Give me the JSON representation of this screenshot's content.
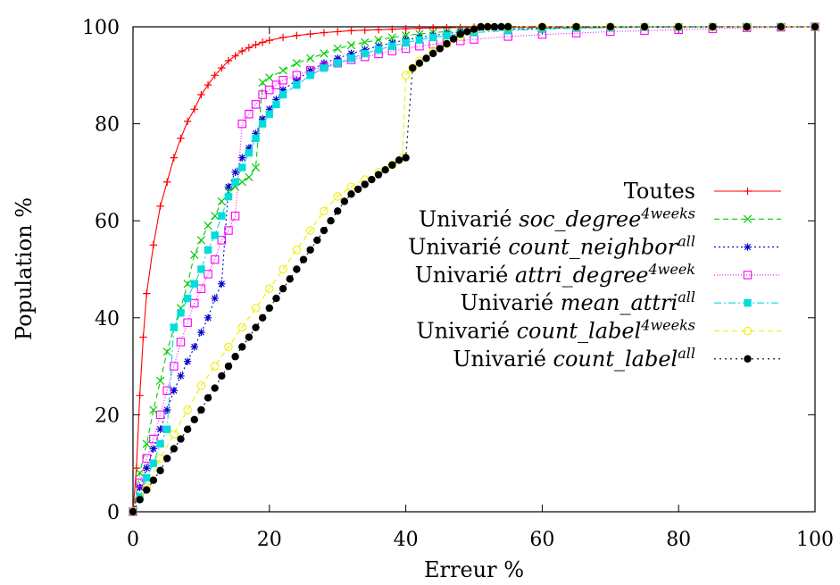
{
  "chart_data": {
    "type": "line",
    "title": "",
    "xlabel": "Erreur %",
    "ylabel": "Population %",
    "xlim": [
      0,
      100
    ],
    "ylim": [
      0,
      100
    ],
    "xticks": [
      "0",
      "20",
      "40",
      "60",
      "80",
      "100"
    ],
    "yticks": [
      "0",
      "20",
      "40",
      "60",
      "80",
      "100"
    ],
    "grid": false,
    "legend_position": "center-right",
    "series": [
      {
        "name": "Toutes",
        "legend": {
          "prefix": "Toutes",
          "var": "",
          "sup": ""
        },
        "color": "#ff0000",
        "marker": "plus",
        "dash": "",
        "x": [
          0,
          0.5,
          1,
          1.5,
          2,
          3,
          4,
          5,
          6,
          7,
          8,
          9,
          10,
          11,
          12,
          13,
          14,
          15,
          16,
          17,
          18,
          19,
          20,
          22,
          24,
          26,
          28,
          30,
          32,
          34,
          36,
          38,
          40,
          42,
          44,
          46,
          48,
          50,
          55,
          60,
          65,
          70,
          75,
          80,
          85,
          90,
          95,
          100
        ],
        "y": [
          0,
          9,
          24,
          36,
          45,
          55,
          63,
          68,
          73,
          77,
          80.5,
          83,
          86,
          88,
          90,
          91.5,
          93,
          94,
          95,
          95.7,
          96.3,
          96.8,
          97.2,
          97.8,
          98.2,
          98.5,
          98.8,
          99,
          99.2,
          99.3,
          99.4,
          99.5,
          99.6,
          99.7,
          99.75,
          99.8,
          99.85,
          99.9,
          99.92,
          99.95,
          99.96,
          99.97,
          99.98,
          99.99,
          100,
          100,
          100,
          100
        ]
      },
      {
        "name": "Univarié soc_degree4weeks",
        "legend": {
          "prefix": "Univarié ",
          "var": "soc_degree",
          "sup": "4weeks"
        },
        "color": "#00cc00",
        "marker": "x",
        "dash": "6,4",
        "x": [
          0,
          1,
          2,
          3,
          4,
          5,
          6,
          7,
          8,
          9,
          10,
          11,
          12,
          13,
          14,
          15,
          16,
          17,
          18,
          19,
          20,
          22,
          24,
          26,
          28,
          30,
          32,
          34,
          36,
          38,
          40,
          42,
          44,
          46,
          48,
          50,
          55,
          60,
          65,
          70,
          75,
          80,
          85,
          90,
          95,
          100
        ],
        "y": [
          0,
          8,
          14,
          21,
          27,
          33,
          38,
          42,
          47,
          53,
          56,
          59,
          61,
          64,
          66,
          67,
          68,
          69,
          71,
          88.5,
          89.5,
          91,
          92.5,
          93.5,
          94.5,
          95.5,
          96.2,
          96.8,
          97.3,
          97.8,
          98.2,
          98.5,
          98.8,
          99,
          99.2,
          99.4,
          99.6,
          99.7,
          99.8,
          99.85,
          99.9,
          99.95,
          100,
          100,
          100,
          100
        ]
      },
      {
        "name": "Univarié count_neighborall",
        "legend": {
          "prefix": "Univarié ",
          "var": "count_neighbor",
          "sup": "all"
        },
        "color": "#0000cc",
        "marker": "star",
        "dash": "2,3",
        "x": [
          0,
          1,
          2,
          3,
          4,
          5,
          6,
          7,
          8,
          9,
          10,
          11,
          12,
          13,
          14,
          15,
          16,
          17,
          18,
          19,
          20,
          21,
          22,
          24,
          26,
          28,
          30,
          32,
          34,
          36,
          38,
          40,
          42,
          44,
          46,
          48,
          50,
          55,
          60,
          65,
          70,
          75,
          80,
          85,
          90,
          95,
          100
        ],
        "y": [
          0,
          5,
          9,
          13,
          17,
          21,
          25,
          28,
          31,
          34,
          37,
          40,
          44,
          47,
          67,
          70,
          73,
          75,
          78,
          81,
          83,
          85,
          87,
          89,
          91,
          92.5,
          93.5,
          94.5,
          95.3,
          96,
          96.7,
          97.3,
          97.8,
          98.2,
          98.6,
          98.9,
          99.2,
          99.5,
          99.7,
          99.8,
          99.85,
          99.9,
          99.95,
          100,
          100,
          100,
          100
        ]
      },
      {
        "name": "Univarié attri_degree4week",
        "legend": {
          "prefix": "Univarié ",
          "var": "attri_degree",
          "sup": "4week"
        },
        "color": "#ff00ff",
        "marker": "square-open",
        "dash": "1,2",
        "x": [
          0,
          1,
          2,
          3,
          4,
          5,
          6,
          7,
          8,
          9,
          10,
          11,
          12,
          13,
          14,
          15,
          16,
          17,
          18,
          19,
          20,
          21,
          22,
          24,
          26,
          28,
          30,
          32,
          34,
          36,
          38,
          40,
          42,
          44,
          46,
          48,
          50,
          55,
          60,
          65,
          70,
          75,
          80,
          85,
          90,
          95,
          100
        ],
        "y": [
          0,
          6,
          11,
          15,
          20,
          25,
          30,
          35,
          39,
          43,
          46,
          49,
          52,
          56,
          58,
          61,
          80,
          82,
          84,
          86,
          87,
          88,
          89,
          90,
          91,
          91.8,
          92.5,
          93.2,
          93.8,
          94.4,
          95,
          95.5,
          96,
          96.4,
          96.8,
          97.1,
          97.4,
          98,
          98.4,
          98.7,
          99,
          99.2,
          99.4,
          99.6,
          99.8,
          99.9,
          100
        ]
      },
      {
        "name": "Univarié mean_attriall",
        "legend": {
          "prefix": "Univarié ",
          "var": "mean_attri",
          "sup": "all"
        },
        "color": "#00dddd",
        "marker": "square-filled",
        "dash": "8,3,2,3",
        "x": [
          0,
          1,
          2,
          3,
          4,
          5,
          6,
          7,
          8,
          9,
          10,
          11,
          12,
          13,
          14,
          15,
          16,
          17,
          18,
          19,
          20,
          21,
          22,
          24,
          26,
          28,
          30,
          32,
          34,
          36,
          38,
          40,
          42,
          44,
          46,
          48,
          50,
          55,
          60,
          65,
          70,
          75,
          80,
          85,
          90,
          95,
          100
        ],
        "y": [
          0,
          3,
          7,
          10,
          14,
          17,
          38,
          41,
          44,
          47,
          50,
          54,
          57,
          61,
          65,
          68,
          71,
          74,
          77,
          80,
          82,
          84,
          86,
          88,
          90,
          91.5,
          92.5,
          93.5,
          94.5,
          95.3,
          96,
          96.7,
          97.3,
          97.8,
          98.2,
          98.5,
          98.8,
          99.2,
          99.5,
          99.7,
          99.8,
          99.9,
          99.95,
          100,
          100,
          100,
          100
        ]
      },
      {
        "name": "Univarié count_label4weeks",
        "legend": {
          "prefix": "Univarié ",
          "var": "count_label",
          "sup": "4weeks"
        },
        "color": "#eeee00",
        "marker": "circle-open",
        "dash": "6,4",
        "x": [
          0,
          2,
          4,
          6,
          8,
          10,
          12,
          14,
          16,
          18,
          20,
          22,
          24,
          26,
          28,
          30,
          32,
          34,
          36,
          38,
          39.5,
          40,
          41,
          42,
          44,
          46,
          48,
          50,
          52,
          55,
          60,
          65,
          70,
          75,
          80,
          85,
          90,
          95,
          100
        ],
        "y": [
          0,
          5,
          11,
          16,
          21,
          26,
          30,
          34,
          38,
          42,
          46,
          50,
          54,
          58,
          62,
          65,
          67,
          68.5,
          70,
          71.5,
          73,
          90,
          91.5,
          93,
          95,
          96.5,
          98,
          99.5,
          100,
          100,
          100,
          100,
          100,
          100,
          100,
          100,
          100,
          100,
          100
        ]
      },
      {
        "name": "Univarié count_labelall",
        "legend": {
          "prefix": "Univarié ",
          "var": "count_label",
          "sup": "all"
        },
        "color": "#000000",
        "marker": "circle-filled",
        "dash": "2,4",
        "x": [
          0,
          1,
          2,
          3,
          4,
          5,
          6,
          7,
          8,
          9,
          10,
          11,
          12,
          13,
          14,
          15,
          16,
          17,
          18,
          19,
          20,
          21,
          22,
          23,
          24,
          25,
          26,
          27,
          28,
          29,
          30,
          31,
          32,
          33,
          34,
          35,
          36,
          37,
          38,
          39,
          40,
          41,
          42,
          43,
          44,
          45,
          46,
          47,
          48,
          49,
          50,
          51,
          52,
          53,
          54,
          55,
          60,
          65,
          70,
          75,
          80,
          85,
          90,
          95,
          100
        ],
        "y": [
          0,
          2.5,
          4.5,
          6.5,
          8.5,
          11,
          13,
          15,
          17,
          19,
          21,
          23.5,
          25.5,
          28,
          30,
          32,
          34,
          36,
          38,
          40,
          42,
          44,
          46,
          48,
          50,
          52,
          54,
          56,
          58,
          60,
          62,
          64,
          65.5,
          66.5,
          67.5,
          68.5,
          69.5,
          70.5,
          71.5,
          72.5,
          73,
          91.5,
          92.5,
          93.5,
          94.5,
          95.5,
          96.5,
          97.5,
          98.5,
          99,
          99.5,
          100,
          100,
          100,
          100,
          100,
          100,
          100,
          100,
          100,
          100,
          100,
          100,
          100,
          100
        ]
      }
    ]
  }
}
